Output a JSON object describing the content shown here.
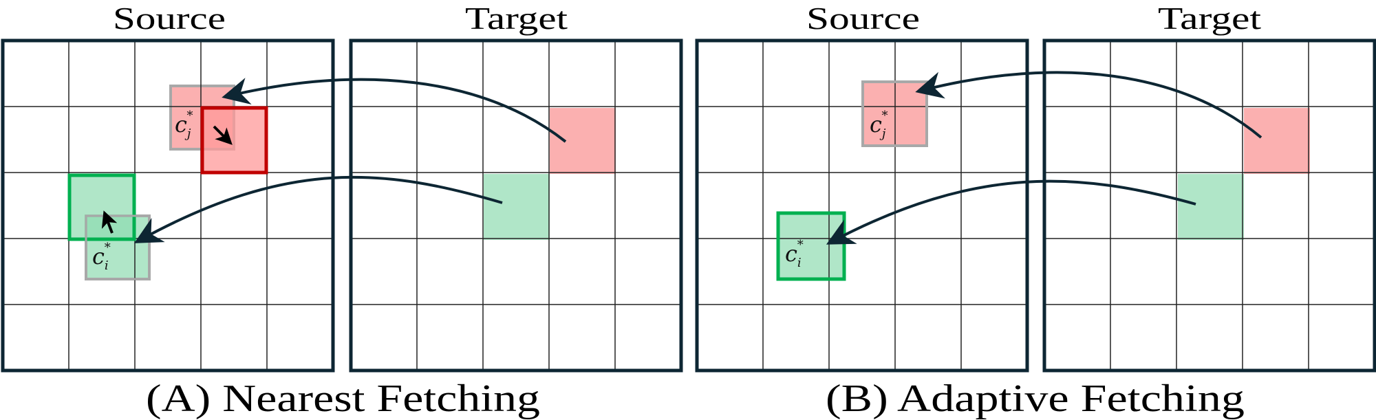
{
  "colors": {
    "frame": "#0d2633",
    "grid": "#222222",
    "pink_fill": "#fbb0b0",
    "green_fill": "#b0e6c8",
    "red_border": "#c00000",
    "green_border": "#00b050",
    "gray_border": "#a8a8a8",
    "arrow": "#0d2633"
  },
  "grid": {
    "rows": 5,
    "cols": 5
  },
  "panel_a": {
    "source_title": "Source",
    "target_title": "Target",
    "caption": "(A) Nearest Fetching",
    "label_j": {
      "base": "c",
      "sub": "j",
      "sup": "*"
    },
    "label_i": {
      "base": "c",
      "sub": "i",
      "sup": "*"
    }
  },
  "panel_b": {
    "source_title": "Source",
    "target_title": "Target",
    "caption": "(B) Adaptive Fetching",
    "label_j": {
      "base": "c",
      "sub": "j",
      "sup": "*"
    },
    "label_i": {
      "base": "c",
      "sub": "i",
      "sup": "*"
    }
  }
}
